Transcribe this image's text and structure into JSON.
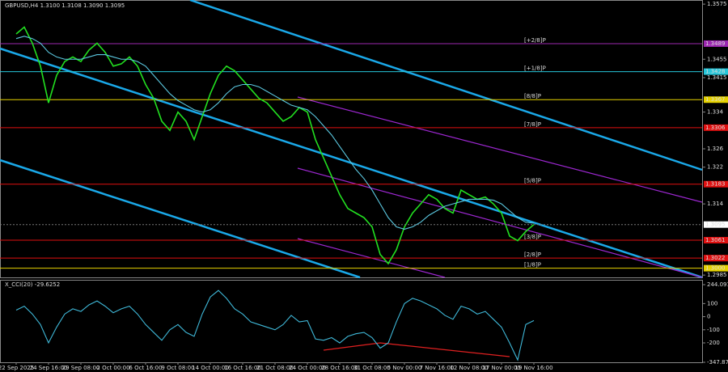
{
  "chart_data": [
    {
      "type": "line",
      "title": "GBPUSD,H4 1.3100 1.3108 1.3090 1.3095",
      "categories": [
        "22 Sep 2025",
        null,
        null,
        null,
        "24 Sep 16:00",
        null,
        null,
        null,
        "29 Sep 08:00",
        null,
        null,
        null,
        "2 Oct 00:00",
        null,
        null,
        null,
        "6 Oct 16:00",
        null,
        null,
        null,
        "9 Oct 08:00",
        null,
        null,
        null,
        "14 Oct 00:00",
        null,
        null,
        null,
        "16 Oct 16:00",
        null,
        null,
        null,
        "21 Oct 08:00",
        null,
        null,
        null,
        "24 Oct 00:00",
        null,
        null,
        null,
        "28 Oct 16:00",
        null,
        null,
        null,
        "31 Oct 08:00",
        null,
        null,
        null,
        "5 Nov 00:00",
        null,
        null,
        null,
        "7 Nov 16:00",
        null,
        null,
        null,
        "12 Nov 08:00",
        null,
        null,
        null,
        "17 Nov 00:00",
        null,
        null,
        null,
        "19 Nov 16:00"
      ],
      "series": [
        {
          "name": "GBPUSD",
          "color": "#22e020",
          "values": [
            1.351,
            1.3525,
            1.349,
            1.344,
            1.336,
            1.342,
            1.345,
            1.346,
            1.345,
            1.3475,
            1.349,
            1.347,
            1.344,
            1.3445,
            1.346,
            1.344,
            1.34,
            1.337,
            1.332,
            1.33,
            1.334,
            1.332,
            1.328,
            1.333,
            1.338,
            1.342,
            1.344,
            1.343,
            1.341,
            1.339,
            1.337,
            1.336,
            1.334,
            1.332,
            1.333,
            1.335,
            1.334,
            1.328,
            1.324,
            1.32,
            1.316,
            1.313,
            1.312,
            1.311,
            1.309,
            1.303,
            1.301,
            1.304,
            1.309,
            1.312,
            1.314,
            1.316,
            1.315,
            1.313,
            1.312,
            1.317,
            1.316,
            1.315,
            1.3155,
            1.314,
            1.312,
            1.307,
            1.306,
            1.308,
            1.3095
          ]
        },
        {
          "name": "MA",
          "color": "#5bc8e0",
          "values": [
            1.35,
            1.3505,
            1.35,
            1.349,
            1.347,
            1.346,
            1.3455,
            1.3455,
            1.3455,
            1.346,
            1.3465,
            1.3465,
            1.346,
            1.3455,
            1.3455,
            1.345,
            1.344,
            1.342,
            1.34,
            1.338,
            1.3365,
            1.3355,
            1.3345,
            1.334,
            1.3345,
            1.336,
            1.338,
            1.3395,
            1.34,
            1.34,
            1.3395,
            1.3385,
            1.3375,
            1.3365,
            1.3355,
            1.335,
            1.3345,
            1.333,
            1.331,
            1.329,
            1.3265,
            1.324,
            1.3215,
            1.3195,
            1.317,
            1.314,
            1.311,
            1.309,
            1.3085,
            1.309,
            1.31,
            1.3115,
            1.3125,
            1.3135,
            1.314,
            1.3145,
            1.315,
            1.315,
            1.315,
            1.3148,
            1.314,
            1.3125,
            1.311,
            1.31,
            1.3098
          ]
        }
      ],
      "ylim": [
        1.298,
        1.3584
      ],
      "yticks": [
        1.3575,
        1.3455,
        1.3415,
        1.334,
        1.326,
        1.322,
        1.314,
        1.2985
      ],
      "levels": [
        {
          "value": 1.3489,
          "value_label": "1.3489",
          "label": "[+2/8]P",
          "color": "#9c27b0"
        },
        {
          "value": 1.3428,
          "value_label": "1.3428",
          "label": "[+1/8]P",
          "color": "#26c6da"
        },
        {
          "value": 1.3367,
          "value_label": "1.3367",
          "label": "[8/8]P",
          "color": "#e6d200"
        },
        {
          "value": 1.3306,
          "value_label": "1.3306",
          "label": "[7/8]P",
          "color": "#e01010"
        },
        {
          "value": 1.3183,
          "value_label": "1.3183",
          "label": "[5/8]P",
          "color": "#e01010"
        },
        {
          "value": 1.3061,
          "value_label": "1.3061",
          "label": "[3/8]P",
          "color": "#e01010"
        },
        {
          "value": 1.3022,
          "value_label": "1.3022",
          "label": "[2/8]P",
          "color": "#e01010"
        },
        {
          "value": 1.3,
          "value_label": "1.3000",
          "label": "[1/8]P",
          "color": "#e6d200"
        }
      ],
      "last_price": 1.3095
    },
    {
      "type": "line",
      "title": "X_CCI(20) -29.6252",
      "series": [
        {
          "name": "CCI",
          "color": "#3fb8d8",
          "values": [
            50,
            80,
            20,
            -60,
            -200,
            -80,
            20,
            60,
            40,
            90,
            120,
            80,
            30,
            60,
            80,
            20,
            -60,
            -120,
            -180,
            -100,
            -60,
            -120,
            -150,
            20,
            150,
            200,
            140,
            60,
            20,
            -40,
            -60,
            -80,
            -100,
            -60,
            10,
            -40,
            -30,
            -170,
            -180,
            -160,
            -200,
            -150,
            -130,
            -120,
            -160,
            -240,
            -200,
            -40,
            100,
            140,
            120,
            90,
            60,
            10,
            -20,
            80,
            60,
            20,
            40,
            -20,
            -80,
            -200,
            -330,
            -60,
            -29.6252
          ]
        }
      ],
      "ylim": [
        -347.874,
        244.0912
      ],
      "yticks": [
        244.0912,
        100,
        0,
        -100,
        -200,
        -347.874
      ]
    }
  ]
}
